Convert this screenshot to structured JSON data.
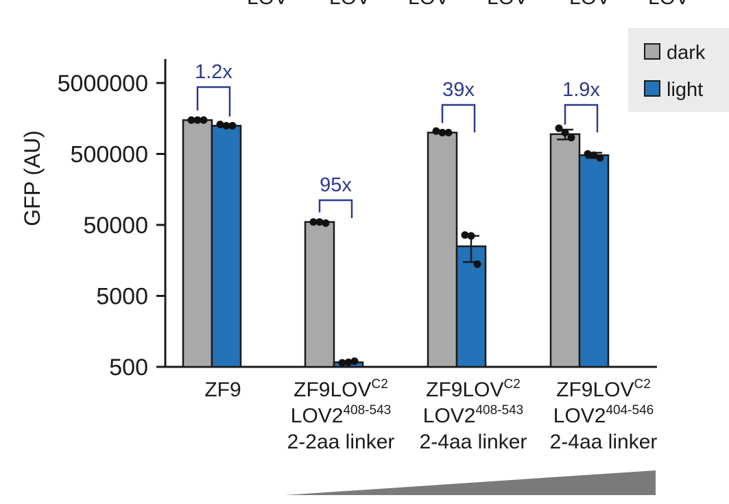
{
  "chart_data": {
    "type": "bar",
    "scale": "log10",
    "ylabel": "GFP (AU)",
    "xlabel": "",
    "ylim": [
      500,
      10000000
    ],
    "yticks": [
      500,
      5000,
      50000,
      500000,
      5000000
    ],
    "ytick_labels": [
      "500",
      "5000",
      "50000",
      "500000",
      "5000000"
    ],
    "categories": [
      {
        "lines": [
          {
            "text": "ZF9",
            "sup": ""
          }
        ]
      },
      {
        "lines": [
          {
            "text": "ZF9LOV",
            "sup": "C2"
          },
          {
            "text": "LOV2",
            "sup": "408-543"
          },
          {
            "text": "2-2aa linker",
            "sup": ""
          }
        ]
      },
      {
        "lines": [
          {
            "text": "ZF9LOV",
            "sup": "C2"
          },
          {
            "text": "LOV2",
            "sup": "408-543"
          },
          {
            "text": "2-4aa linker",
            "sup": ""
          }
        ]
      },
      {
        "lines": [
          {
            "text": "ZF9LOV",
            "sup": "C2"
          },
          {
            "text": "LOV2",
            "sup": "404-546"
          },
          {
            "text": "2-4aa linker",
            "sup": ""
          }
        ]
      }
    ],
    "series": [
      {
        "name": "dark",
        "color": "#a9a9a9",
        "values": [
          1500000,
          55000,
          1000000,
          950000
        ],
        "error": [
          0,
          0,
          0,
          150000
        ],
        "points": [
          [
            1500000,
            1500000,
            1500000
          ],
          [
            55000,
            55000,
            53000
          ],
          [
            1050000,
            1000000,
            1000000
          ],
          [
            1150000,
            1000000,
            850000
          ]
        ]
      },
      {
        "name": "light",
        "color": "#2472b8",
        "values": [
          1250000,
          580,
          25000,
          480000
        ],
        "error": [
          0,
          0,
          10000,
          40000
        ],
        "points": [
          [
            1300000,
            1250000,
            1250000
          ],
          [
            570,
            580,
            600
          ],
          [
            36000,
            35000,
            14000
          ],
          [
            500000,
            480000,
            440000
          ]
        ]
      }
    ],
    "fold_changes": [
      "1.2x",
      "95x",
      "39x",
      "1.9x"
    ],
    "legend_position": "top-right",
    "grid": false,
    "ramp_color": "#7a7a7a",
    "top_cut_label": "LOV"
  }
}
